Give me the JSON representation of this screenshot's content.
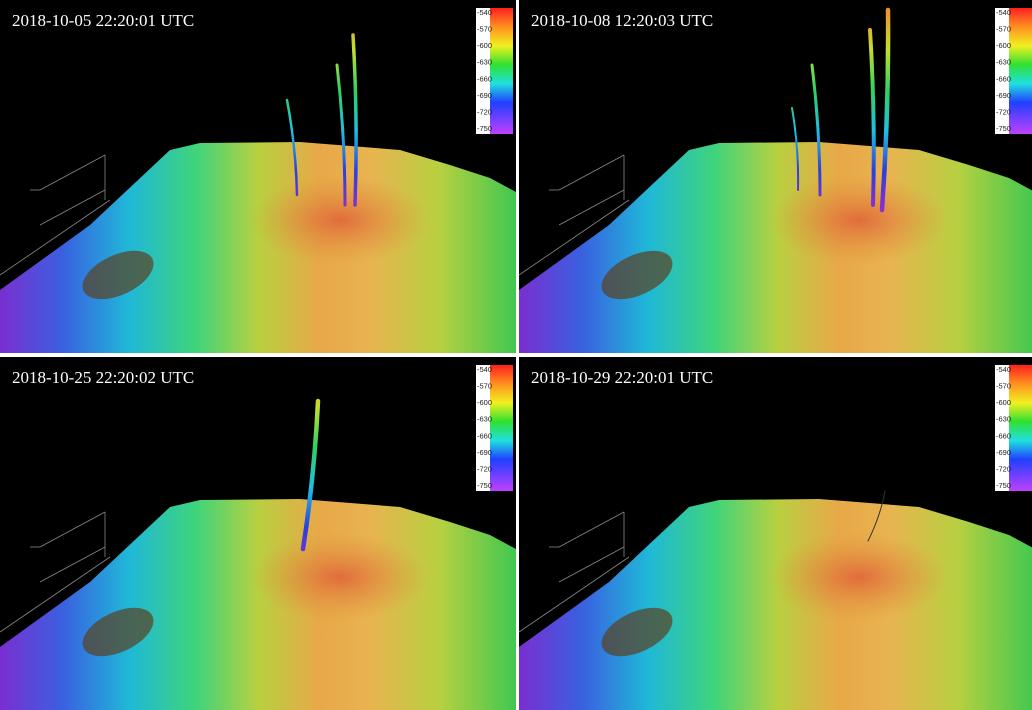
{
  "panels": [
    {
      "timestamp": "2018-10-05  22:20:01  UTC"
    },
    {
      "timestamp": "2018-10-08  12:20:03  UTC"
    },
    {
      "timestamp": "2018-10-25  22:20:02  UTC"
    },
    {
      "timestamp": "2018-10-29  22:20:01  UTC"
    }
  ],
  "colorbar": {
    "labels": [
      -540,
      -570,
      -600,
      -630,
      -660,
      -690,
      -720,
      -750
    ]
  }
}
